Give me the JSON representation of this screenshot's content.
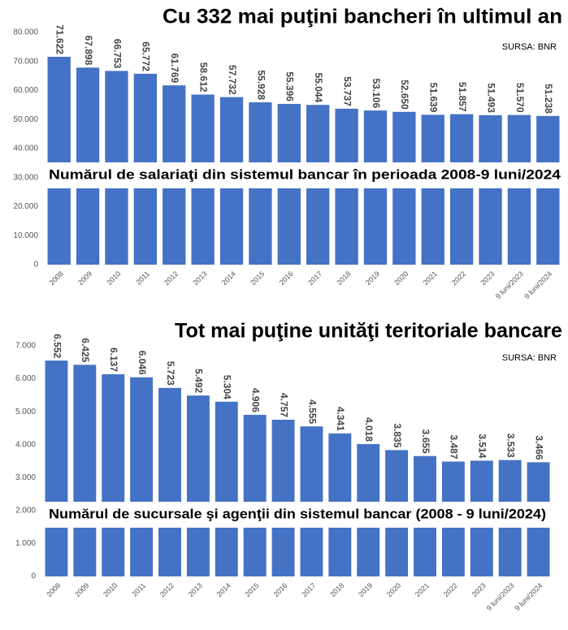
{
  "chart_data": [
    {
      "type": "bar",
      "title": "Cu 332 mai puţini bancheri în ultimul an",
      "source": "SURSA: BNR",
      "subtitle": "Numărul de salariaţi din sistemul bancar în perioada 2008-9 luni/2024",
      "categories": [
        "2008",
        "2009",
        "2010",
        "2011",
        "2012",
        "2013",
        "2014",
        "2015",
        "2016",
        "2017",
        "2018",
        "2019",
        "2020",
        "2021",
        "2022",
        "2023",
        "9 luni/2023",
        "9 luni/2024"
      ],
      "values": [
        71622,
        67898,
        66753,
        65772,
        61769,
        58612,
        57732,
        55928,
        55396,
        55044,
        53737,
        53106,
        52650,
        51639,
        51857,
        51493,
        51570,
        51238
      ],
      "value_labels": [
        "71.622",
        "67.898",
        "66.753",
        "65.772",
        "61.769",
        "58.612",
        "57.732",
        "55.928",
        "55.396",
        "55.044",
        "53.737",
        "53.106",
        "52.650",
        "51.639",
        "51.857",
        "51.493",
        "51.570",
        "51.238"
      ],
      "color": "#4472c4",
      "grid": false,
      "ylim": [
        0,
        80000
      ],
      "yticks": [
        0,
        {
          "value": 10000,
          "label": "10.000"
        },
        {
          "value": 20000,
          "label": "20.000"
        },
        {
          "value": 30000,
          "label": "30.000"
        },
        {
          "value": 40000,
          "label": "40.000"
        },
        {
          "value": 50000,
          "label": "50.000"
        },
        {
          "value": 60000,
          "label": "60.000"
        },
        {
          "value": 70000,
          "label": "70.000"
        },
        {
          "value": 80000,
          "label": "80.000"
        }
      ]
    },
    {
      "type": "bar",
      "title": "Tot mai puţine unităţi teritoriale bancare",
      "source": "SURSA: BNR",
      "subtitle": "Numărul de sucursale şi agenţii din sistemul bancar (2008 - 9 luni/2024)",
      "categories": [
        "2008",
        "2009",
        "2010",
        "2011",
        "2012",
        "2013",
        "2014",
        "2015",
        "2016",
        "2017",
        "2018",
        "2019",
        "2020",
        "2021",
        "2022",
        "2023",
        "9 luni/2023",
        "9 luni/2024"
      ],
      "values": [
        6552,
        6425,
        6137,
        6046,
        5723,
        5492,
        5304,
        4906,
        4757,
        4555,
        4341,
        4018,
        3835,
        3655,
        3487,
        3514,
        3533,
        3466
      ],
      "value_labels": [
        "6.552",
        "6.425",
        "6.137",
        "6.046",
        "5.723",
        "5.492",
        "5.304",
        "4.906",
        "4.757",
        "4.555",
        "4.341",
        "4.018",
        "3.835",
        "3.655",
        "3.487",
        "3.514",
        "3.533",
        "3.466"
      ],
      "color": "#4472c4",
      "grid": false,
      "ylim": [
        0,
        7000
      ],
      "yticks": [
        0,
        {
          "value": 1000,
          "label": "1.000"
        },
        {
          "value": 2000,
          "label": "2.000"
        },
        {
          "value": 3000,
          "label": "3.000"
        },
        {
          "value": 4000,
          "label": "4.000"
        },
        {
          "value": 5000,
          "label": "5.000"
        },
        {
          "value": 6000,
          "label": "6.000"
        },
        {
          "value": 7000,
          "label": "7.000"
        }
      ]
    }
  ]
}
